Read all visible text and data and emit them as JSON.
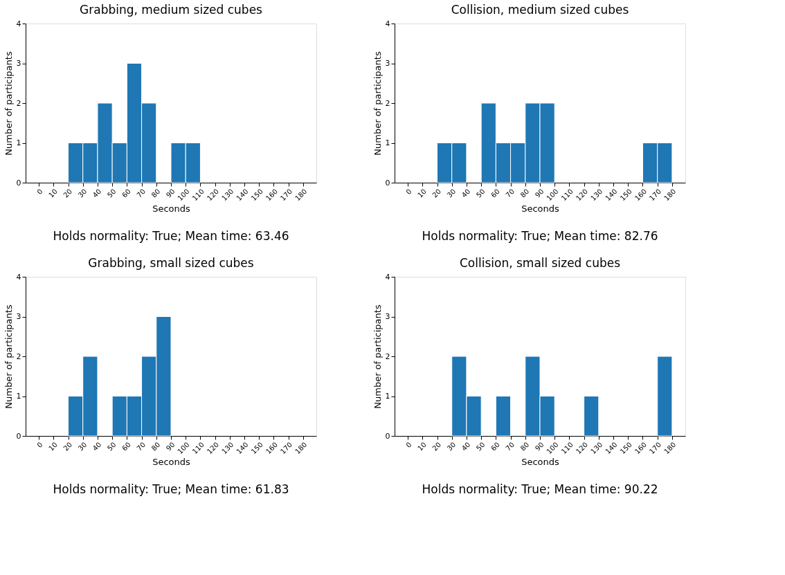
{
  "chart_data": [
    {
      "type": "histogram",
      "title": "Grabbing, medium sized cubes",
      "xlabel": "Seconds",
      "ylabel": "Number of participants",
      "color": "#1f77b4",
      "bins": [
        0,
        10,
        20,
        30,
        40,
        50,
        60,
        70,
        80,
        90,
        100,
        110,
        120,
        130,
        140,
        150,
        160,
        170,
        180
      ],
      "values": [
        0,
        0,
        1,
        1,
        2,
        1,
        3,
        2,
        0,
        1,
        1,
        0,
        0,
        0,
        0,
        0,
        0,
        0
      ],
      "xlim": [
        -9,
        189
      ],
      "xticks": [
        0,
        10,
        20,
        30,
        40,
        50,
        60,
        70,
        80,
        90,
        100,
        110,
        120,
        130,
        140,
        150,
        160,
        170,
        180
      ],
      "ylim": [
        0,
        4
      ],
      "yticks": [
        0,
        1,
        2,
        3,
        4
      ],
      "annotations": [
        "Holds normality: True; Mean time: 63.46"
      ]
    },
    {
      "type": "histogram",
      "title": "Collision, medium sized cubes",
      "xlabel": "Seconds",
      "ylabel": "Number of participants",
      "color": "#1f77b4",
      "bins": [
        0,
        10,
        20,
        30,
        40,
        50,
        60,
        70,
        80,
        90,
        100,
        110,
        120,
        130,
        140,
        150,
        160,
        170,
        180
      ],
      "values": [
        0,
        0,
        1,
        1,
        0,
        2,
        1,
        1,
        2,
        2,
        0,
        0,
        0,
        0,
        0,
        0,
        1,
        1
      ],
      "xlim": [
        -9,
        189
      ],
      "xticks": [
        0,
        10,
        20,
        30,
        40,
        50,
        60,
        70,
        80,
        90,
        100,
        110,
        120,
        130,
        140,
        150,
        160,
        170,
        180
      ],
      "ylim": [
        0,
        4
      ],
      "yticks": [
        0,
        1,
        2,
        3,
        4
      ],
      "annotations": [
        "Holds normality: True; Mean time: 82.76"
      ]
    },
    {
      "type": "histogram",
      "title": "Grabbing, small sized cubes",
      "xlabel": "Seconds",
      "ylabel": "Number of participants",
      "color": "#1f77b4",
      "bins": [
        0,
        10,
        20,
        30,
        40,
        50,
        60,
        70,
        80,
        90,
        100,
        110,
        120,
        130,
        140,
        150,
        160,
        170,
        180
      ],
      "values": [
        0,
        0,
        1,
        2,
        0,
        1,
        1,
        2,
        3,
        0,
        0,
        0,
        0,
        0,
        0,
        0,
        0,
        0
      ],
      "xlim": [
        -9,
        189
      ],
      "xticks": [
        0,
        10,
        20,
        30,
        40,
        50,
        60,
        70,
        80,
        90,
        100,
        110,
        120,
        130,
        140,
        150,
        160,
        170,
        180
      ],
      "ylim": [
        0,
        4
      ],
      "yticks": [
        0,
        1,
        2,
        3,
        4
      ],
      "annotations": [
        "Holds normality: True; Mean time: 61.83"
      ]
    },
    {
      "type": "histogram",
      "title": "Collision, small sized cubes",
      "xlabel": "Seconds",
      "ylabel": "Number of participants",
      "color": "#1f77b4",
      "bins": [
        0,
        10,
        20,
        30,
        40,
        50,
        60,
        70,
        80,
        90,
        100,
        110,
        120,
        130,
        140,
        150,
        160,
        170,
        180
      ],
      "values": [
        0,
        0,
        0,
        2,
        1,
        0,
        1,
        0,
        2,
        1,
        0,
        0,
        1,
        0,
        0,
        0,
        0,
        2
      ],
      "xlim": [
        -9,
        189
      ],
      "xticks": [
        0,
        10,
        20,
        30,
        40,
        50,
        60,
        70,
        80,
        90,
        100,
        110,
        120,
        130,
        140,
        150,
        160,
        170,
        180
      ],
      "ylim": [
        0,
        4
      ],
      "yticks": [
        0,
        1,
        2,
        3,
        4
      ],
      "annotations": [
        "Holds normality: True; Mean time: 90.22"
      ]
    }
  ]
}
